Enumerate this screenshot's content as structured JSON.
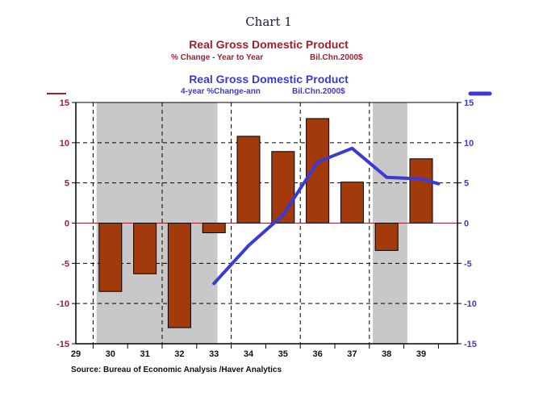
{
  "chart_data": {
    "type": "bar",
    "title": "Chart 1",
    "left_series": {
      "name": "Real Gross Domestic Product",
      "subtitle_left": "% Change - Year to Year",
      "subtitle_right": "Bil.Chn.2000$",
      "color": "#a33a0b",
      "categories": [
        "30",
        "31",
        "32",
        "33",
        "34",
        "35",
        "36",
        "37",
        "38",
        "39"
      ],
      "values": [
        -8.5,
        -6.3,
        -13.0,
        -1.2,
        10.8,
        8.9,
        13.0,
        5.1,
        -3.4,
        8.0
      ]
    },
    "right_series": {
      "name": "Real Gross Domestic Product",
      "subtitle_left": "4-year %Change-ann",
      "subtitle_right": "Bil.Chn.2000$",
      "color": "#3a3ad6",
      "x": [
        33.0,
        34.0,
        35.0,
        36.0,
        37.0,
        38.0,
        39.0,
        39.5
      ],
      "values": [
        -7.5,
        -2.8,
        1.0,
        7.6,
        9.3,
        5.7,
        5.5,
        4.9
      ]
    },
    "x_tick_labels": [
      "29",
      "30",
      "31",
      "32",
      "33",
      "34",
      "35",
      "36",
      "37",
      "38",
      "39"
    ],
    "ylim": [
      -15,
      15
    ],
    "y_ticks": [
      15,
      10,
      5,
      0,
      -5,
      -10,
      -15
    ],
    "recession_shading": [
      [
        29.6,
        33.1
      ],
      [
        37.6,
        38.6
      ]
    ],
    "grid": true,
    "source": "Source:   Bureau of Economic Analysis /Haver Analytics"
  }
}
